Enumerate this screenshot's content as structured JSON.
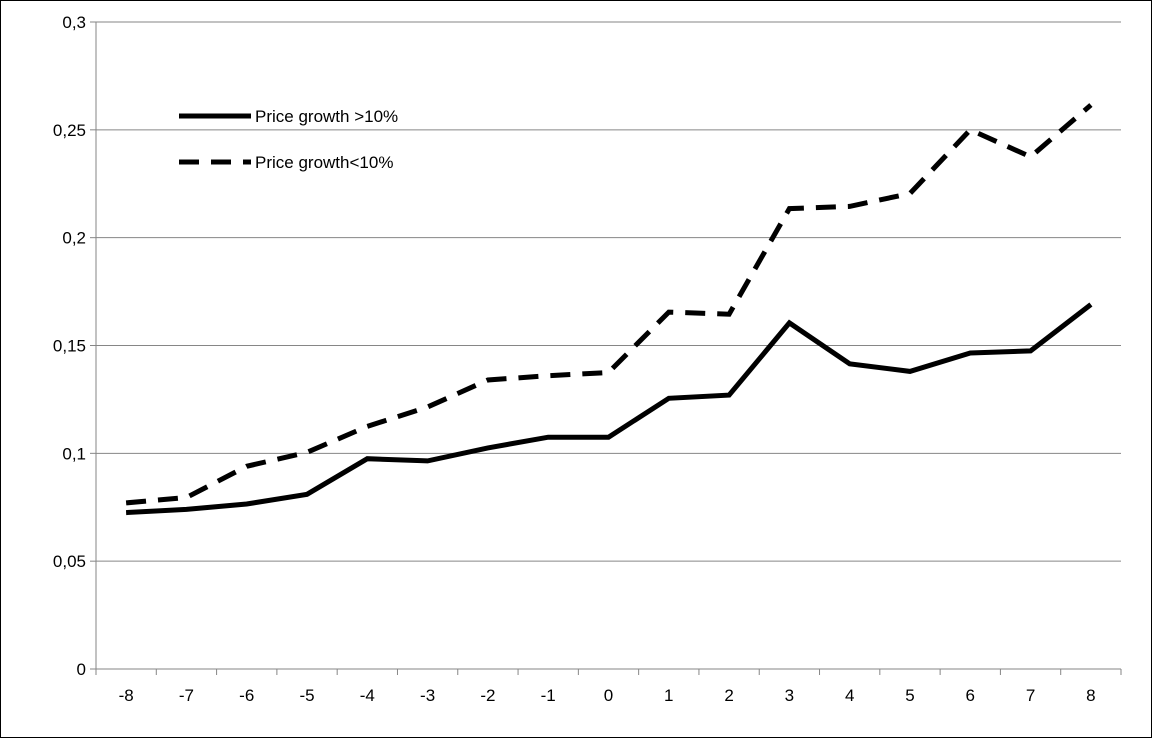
{
  "chart_data": {
    "type": "line",
    "title": "",
    "xlabel": "",
    "ylabel": "",
    "categories": [
      "-8",
      "-7",
      "-6",
      "-5",
      "-4",
      "-3",
      "-2",
      "-1",
      "0",
      "1",
      "2",
      "3",
      "4",
      "5",
      "6",
      "7",
      "8"
    ],
    "x": [
      -8,
      -7,
      -6,
      -5,
      -4,
      -3,
      -2,
      -1,
      0,
      1,
      2,
      3,
      4,
      5,
      6,
      7,
      8
    ],
    "yticks": [
      "0",
      "0,05",
      "0,1",
      "0,15",
      "0,2",
      "0,25",
      "0,3"
    ],
    "ytick_values": [
      0,
      0.05,
      0.1,
      0.15,
      0.2,
      0.25,
      0.3
    ],
    "ylim": [
      0,
      0.3
    ],
    "grid": "horizontal",
    "legend_position": "top-left",
    "series": [
      {
        "name": "Price growth >10%",
        "style": "solid",
        "color": "#000000",
        "values": [
          0.0725,
          0.074,
          0.0765,
          0.081,
          0.0975,
          0.0965,
          0.1025,
          0.1075,
          0.1075,
          0.1255,
          0.127,
          0.1605,
          0.1415,
          0.138,
          0.1465,
          0.1475,
          0.169
        ]
      },
      {
        "name": "Price growth<10%",
        "style": "dashed",
        "color": "#000000",
        "values": [
          0.077,
          0.0795,
          0.094,
          0.1005,
          0.1125,
          0.1215,
          0.134,
          0.136,
          0.1375,
          0.1655,
          0.1645,
          0.2135,
          0.2145,
          0.2205,
          0.25,
          0.2375,
          0.2615
        ]
      }
    ]
  }
}
